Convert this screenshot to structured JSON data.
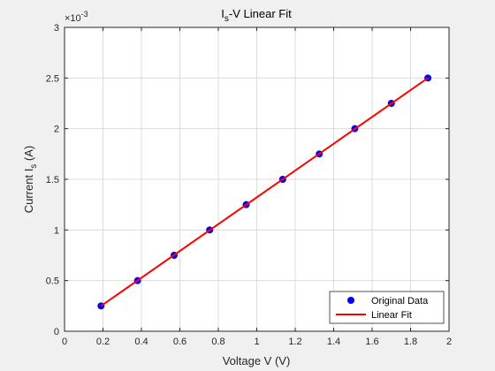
{
  "chart_data": {
    "type": "scatter",
    "title_main": "I",
    "title_sub": "s",
    "title_rest": "-V Linear Fit",
    "xlabel": "Voltage V (V)",
    "ylabel_main": "Current I",
    "ylabel_sub": "s",
    "ylabel_rest": " (A)",
    "xlim": [
      0,
      2
    ],
    "ylim": [
      0,
      3
    ],
    "x_ticks": [
      "0",
      "0.2",
      "0.4",
      "0.6",
      "0.8",
      "1",
      "1.2",
      "1.4",
      "1.6",
      "1.8",
      "2"
    ],
    "y_ticks": [
      "0",
      "0.5",
      "1",
      "1.5",
      "2",
      "2.5",
      "3"
    ],
    "y_multiplier_base": "×10",
    "y_multiplier_exp": "-3",
    "grid": true,
    "legend_position": "bottom-right",
    "series": [
      {
        "name": "Original Data",
        "kind": "points",
        "color": "#0000ff",
        "x": [
          0.19,
          0.38,
          0.57,
          0.755,
          0.945,
          1.135,
          1.325,
          1.51,
          1.7,
          1.89
        ],
        "y": [
          0.25,
          0.5,
          0.75,
          1.0,
          1.25,
          1.5,
          1.75,
          2.0,
          2.25,
          2.5
        ]
      },
      {
        "name": "Linear Fit",
        "kind": "line",
        "color": "#ff0000",
        "x": [
          0.19,
          1.89
        ],
        "y": [
          0.25,
          2.5
        ]
      }
    ]
  }
}
